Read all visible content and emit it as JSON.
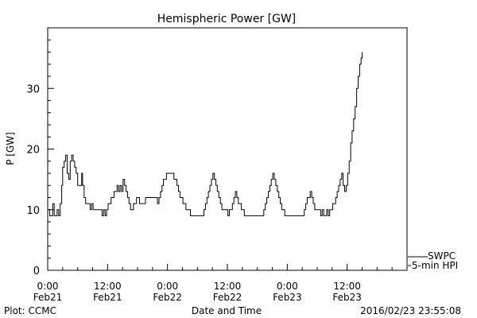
{
  "chart_data": {
    "type": "line",
    "title": "Hemispheric Power [GW]",
    "ylabel": "P [GW]",
    "xlabel": "Date and Time",
    "ylim": [
      0,
      40
    ],
    "yticks": [
      0,
      10,
      20,
      30
    ],
    "xlim": [
      0,
      72
    ],
    "xticks": [
      {
        "x": 0,
        "time": "0:00",
        "date": "Feb21"
      },
      {
        "x": 12,
        "time": "12:00",
        "date": "Feb21"
      },
      {
        "x": 24,
        "time": "0:00",
        "date": "Feb22"
      },
      {
        "x": 36,
        "time": "12:00",
        "date": "Feb22"
      },
      {
        "x": 48,
        "time": "0:00",
        "date": "Feb23"
      },
      {
        "x": 60,
        "time": "12:00",
        "date": "Feb23"
      }
    ],
    "legend": [
      {
        "label": "SWPC"
      },
      {
        "label": "5-min HPI"
      }
    ],
    "series": [
      {
        "points": [
          [
            0.0,
            10
          ],
          [
            0.4,
            9
          ],
          [
            0.7,
            9
          ],
          [
            1.0,
            11
          ],
          [
            1.3,
            9
          ],
          [
            1.6,
            9
          ],
          [
            1.9,
            10
          ],
          [
            2.2,
            9
          ],
          [
            2.5,
            11
          ],
          [
            2.8,
            14
          ],
          [
            3.0,
            17
          ],
          [
            3.3,
            18
          ],
          [
            3.6,
            19
          ],
          [
            3.9,
            16
          ],
          [
            4.2,
            15
          ],
          [
            4.5,
            18
          ],
          [
            4.8,
            19
          ],
          [
            5.1,
            18
          ],
          [
            5.4,
            17
          ],
          [
            5.7,
            16
          ],
          [
            6.0,
            14
          ],
          [
            6.3,
            14
          ],
          [
            6.6,
            14
          ],
          [
            6.8,
            16
          ],
          [
            7.0,
            14
          ],
          [
            7.3,
            12
          ],
          [
            7.6,
            11
          ],
          [
            7.9,
            11
          ],
          [
            8.2,
            11
          ],
          [
            8.5,
            10
          ],
          [
            8.8,
            11
          ],
          [
            9.1,
            10
          ],
          [
            9.4,
            10
          ],
          [
            9.7,
            10
          ],
          [
            10.0,
            10
          ],
          [
            10.3,
            10
          ],
          [
            10.6,
            10
          ],
          [
            10.9,
            9
          ],
          [
            11.2,
            10
          ],
          [
            11.5,
            9
          ],
          [
            11.8,
            10
          ],
          [
            12.1,
            11
          ],
          [
            12.4,
            11
          ],
          [
            12.7,
            12
          ],
          [
            13.0,
            12
          ],
          [
            13.3,
            13
          ],
          [
            13.6,
            13
          ],
          [
            13.9,
            14
          ],
          [
            14.2,
            13
          ],
          [
            14.5,
            14
          ],
          [
            14.8,
            13
          ],
          [
            15.1,
            15
          ],
          [
            15.4,
            14
          ],
          [
            15.7,
            13
          ],
          [
            16.0,
            12
          ],
          [
            16.3,
            11
          ],
          [
            16.6,
            10
          ],
          [
            16.9,
            10
          ],
          [
            17.2,
            11
          ],
          [
            17.5,
            11
          ],
          [
            17.8,
            12
          ],
          [
            18.1,
            12
          ],
          [
            18.4,
            11
          ],
          [
            18.7,
            11
          ],
          [
            19.0,
            11
          ],
          [
            19.3,
            11
          ],
          [
            19.6,
            12
          ],
          [
            19.9,
            12
          ],
          [
            20.2,
            12
          ],
          [
            20.5,
            12
          ],
          [
            20.8,
            12
          ],
          [
            21.1,
            12
          ],
          [
            21.4,
            12
          ],
          [
            21.7,
            12
          ],
          [
            22.0,
            11
          ],
          [
            22.3,
            12
          ],
          [
            22.6,
            13
          ],
          [
            22.9,
            14
          ],
          [
            23.2,
            15
          ],
          [
            23.5,
            15
          ],
          [
            23.8,
            16
          ],
          [
            24.1,
            16
          ],
          [
            24.4,
            16
          ],
          [
            24.7,
            16
          ],
          [
            25.0,
            16
          ],
          [
            25.3,
            15
          ],
          [
            25.6,
            15
          ],
          [
            25.9,
            14
          ],
          [
            26.2,
            13
          ],
          [
            26.5,
            12
          ],
          [
            26.8,
            12
          ],
          [
            27.1,
            11
          ],
          [
            27.4,
            11
          ],
          [
            27.7,
            10
          ],
          [
            28.0,
            10
          ],
          [
            28.3,
            10
          ],
          [
            28.6,
            9
          ],
          [
            28.9,
            9
          ],
          [
            29.2,
            9
          ],
          [
            29.5,
            9
          ],
          [
            29.8,
            9
          ],
          [
            30.1,
            9
          ],
          [
            30.4,
            9
          ],
          [
            30.7,
            9
          ],
          [
            31.0,
            9
          ],
          [
            31.3,
            10
          ],
          [
            31.6,
            11
          ],
          [
            31.9,
            12
          ],
          [
            32.2,
            13
          ],
          [
            32.5,
            14
          ],
          [
            32.8,
            15
          ],
          [
            33.1,
            16
          ],
          [
            33.4,
            15
          ],
          [
            33.7,
            14
          ],
          [
            34.0,
            13
          ],
          [
            34.3,
            12
          ],
          [
            34.6,
            11
          ],
          [
            34.9,
            10
          ],
          [
            35.2,
            10
          ],
          [
            35.5,
            10
          ],
          [
            35.8,
            10
          ],
          [
            36.1,
            9
          ],
          [
            36.4,
            10
          ],
          [
            36.7,
            10
          ],
          [
            37.0,
            11
          ],
          [
            37.3,
            12
          ],
          [
            37.6,
            13
          ],
          [
            37.9,
            12
          ],
          [
            38.2,
            11
          ],
          [
            38.5,
            11
          ],
          [
            38.8,
            10
          ],
          [
            39.1,
            10
          ],
          [
            39.4,
            9
          ],
          [
            39.7,
            9
          ],
          [
            40.0,
            9
          ],
          [
            40.3,
            9
          ],
          [
            40.6,
            9
          ],
          [
            40.9,
            9
          ],
          [
            41.2,
            9
          ],
          [
            41.5,
            9
          ],
          [
            41.8,
            9
          ],
          [
            42.1,
            9
          ],
          [
            42.4,
            9
          ],
          [
            42.7,
            9
          ],
          [
            43.0,
            9
          ],
          [
            43.3,
            10
          ],
          [
            43.6,
            11
          ],
          [
            43.9,
            12
          ],
          [
            44.2,
            13
          ],
          [
            44.5,
            14
          ],
          [
            44.8,
            15
          ],
          [
            45.1,
            16
          ],
          [
            45.4,
            15
          ],
          [
            45.7,
            14
          ],
          [
            46.0,
            13
          ],
          [
            46.3,
            12
          ],
          [
            46.6,
            11
          ],
          [
            46.9,
            10
          ],
          [
            47.2,
            10
          ],
          [
            47.5,
            9
          ],
          [
            47.8,
            9
          ],
          [
            48.1,
            9
          ],
          [
            48.4,
            9
          ],
          [
            48.7,
            9
          ],
          [
            49.0,
            9
          ],
          [
            49.3,
            9
          ],
          [
            49.6,
            9
          ],
          [
            49.9,
            9
          ],
          [
            50.2,
            9
          ],
          [
            50.5,
            9
          ],
          [
            50.8,
            9
          ],
          [
            51.1,
            9
          ],
          [
            51.4,
            10
          ],
          [
            51.7,
            11
          ],
          [
            52.0,
            12
          ],
          [
            52.3,
            12
          ],
          [
            52.6,
            13
          ],
          [
            52.9,
            12
          ],
          [
            53.2,
            11
          ],
          [
            53.5,
            10
          ],
          [
            53.8,
            10
          ],
          [
            54.1,
            10
          ],
          [
            54.4,
            10
          ],
          [
            54.7,
            9
          ],
          [
            55.0,
            10
          ],
          [
            55.3,
            9
          ],
          [
            55.6,
            9
          ],
          [
            55.9,
            10
          ],
          [
            56.2,
            9
          ],
          [
            56.5,
            10
          ],
          [
            56.8,
            10
          ],
          [
            57.1,
            11
          ],
          [
            57.4,
            11
          ],
          [
            57.7,
            12
          ],
          [
            58.0,
            13
          ],
          [
            58.3,
            14
          ],
          [
            58.6,
            15
          ],
          [
            58.9,
            16
          ],
          [
            59.2,
            14
          ],
          [
            59.5,
            13
          ],
          [
            59.8,
            14
          ],
          [
            60.1,
            16
          ],
          [
            60.4,
            18
          ],
          [
            60.7,
            21
          ],
          [
            61.0,
            23
          ],
          [
            61.3,
            25
          ],
          [
            61.6,
            27
          ],
          [
            61.9,
            30
          ],
          [
            62.2,
            32
          ],
          [
            62.5,
            34
          ],
          [
            62.8,
            35
          ],
          [
            63.0,
            36
          ]
        ]
      }
    ]
  },
  "footer": {
    "left": "Plot: CCMC",
    "right": "2016/02/23 23:55:08"
  }
}
